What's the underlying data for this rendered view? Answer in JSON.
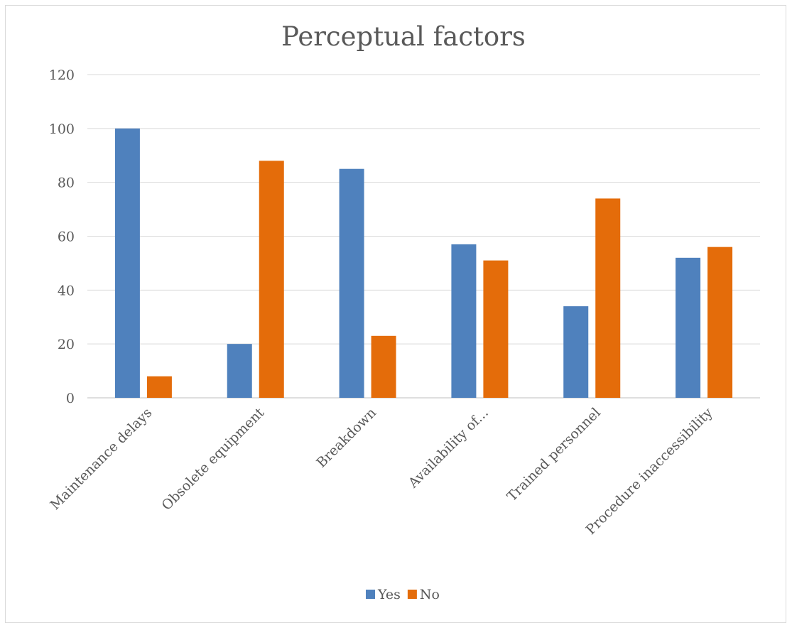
{
  "chart_data": {
    "type": "bar",
    "title": "Perceptual factors",
    "xlabel": "",
    "ylabel": "",
    "categories": [
      "Maintenance delays",
      "Obsolete equipment",
      "Breakdown",
      "Availability of...",
      "Trained personnel",
      "Procedure inaccessibility"
    ],
    "series": [
      {
        "name": "Yes",
        "color": "#4f81bd",
        "values": [
          100,
          20,
          85,
          57,
          34,
          52
        ]
      },
      {
        "name": "No",
        "color": "#e46c0a",
        "values": [
          8,
          88,
          23,
          51,
          74,
          56
        ]
      }
    ],
    "ylim": [
      0,
      120
    ],
    "yticks": [
      0,
      20,
      40,
      60,
      80,
      100,
      120
    ],
    "grid": true,
    "legend": "bottom"
  }
}
